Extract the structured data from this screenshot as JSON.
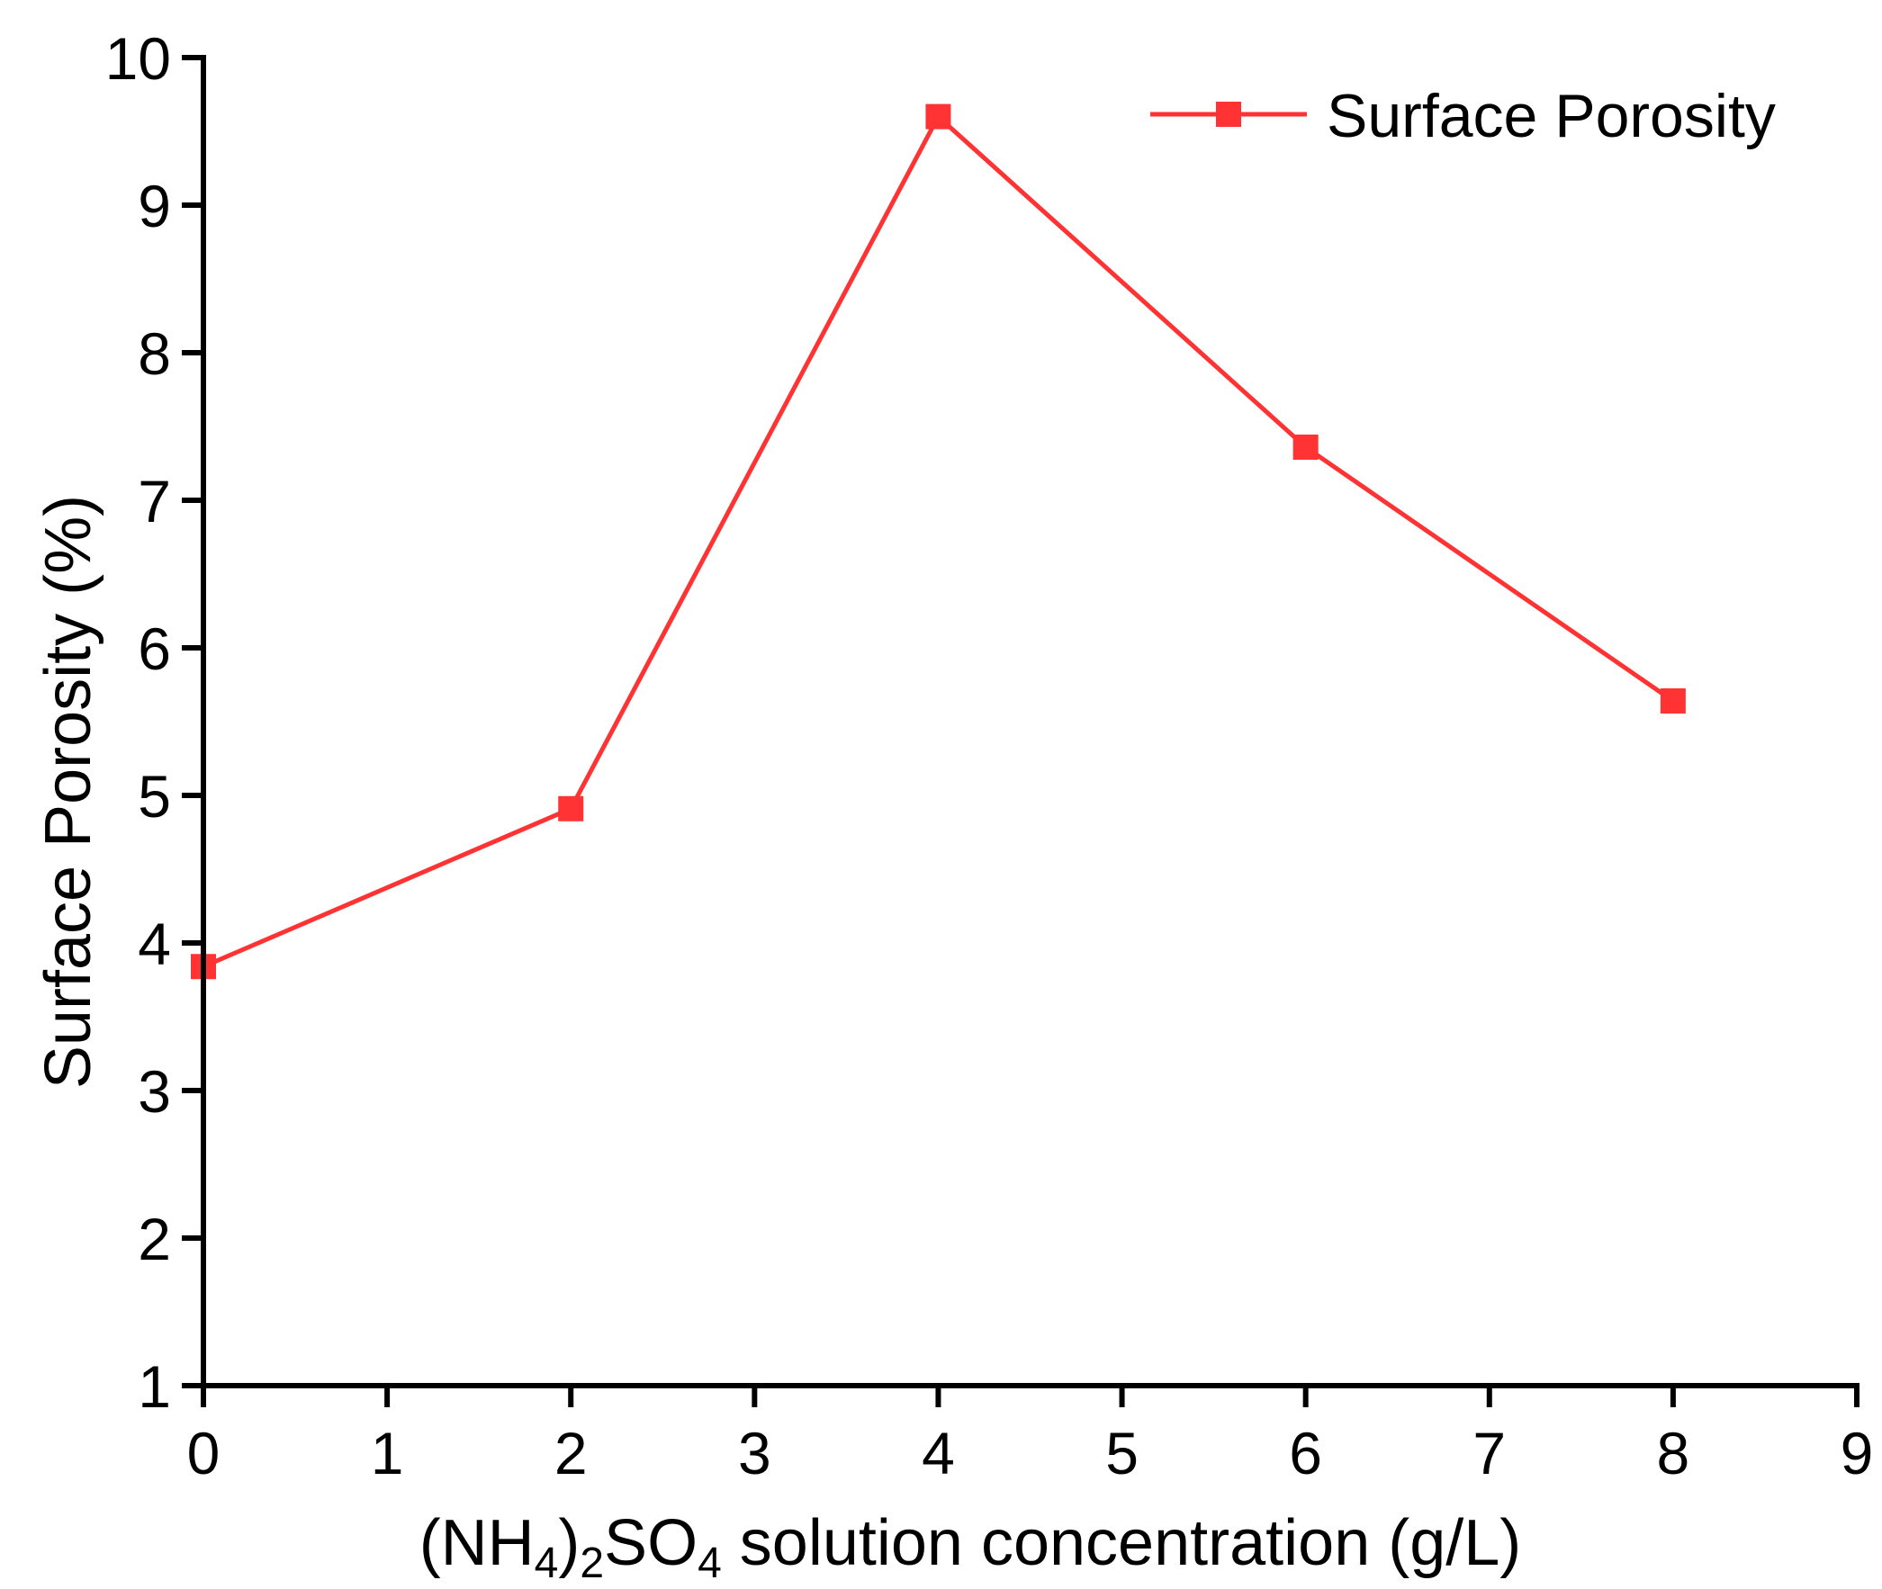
{
  "chart_data": {
    "type": "line",
    "title": "",
    "xlabel": {
      "prefix": "(NH",
      "sub1": "4",
      "mid1": ")",
      "sub2": "2",
      "mid2": "SO",
      "sub3": "4",
      "suffix": " solution concentration (g/L)"
    },
    "ylabel": "Surface Porosity (%)",
    "xlim": [
      0,
      9
    ],
    "ylim": [
      1,
      10
    ],
    "xticks": [
      0,
      1,
      2,
      3,
      4,
      5,
      6,
      7,
      8,
      9
    ],
    "yticks": [
      1,
      2,
      3,
      4,
      5,
      6,
      7,
      8,
      9,
      10
    ],
    "grid": false,
    "legend_position": "top-right",
    "series": [
      {
        "name": "Surface Porosity",
        "color": "#ff3333",
        "marker": "square",
        "x": [
          0,
          2,
          4,
          6,
          8
        ],
        "y": [
          3.84,
          4.91,
          9.6,
          7.36,
          5.64
        ]
      }
    ]
  }
}
